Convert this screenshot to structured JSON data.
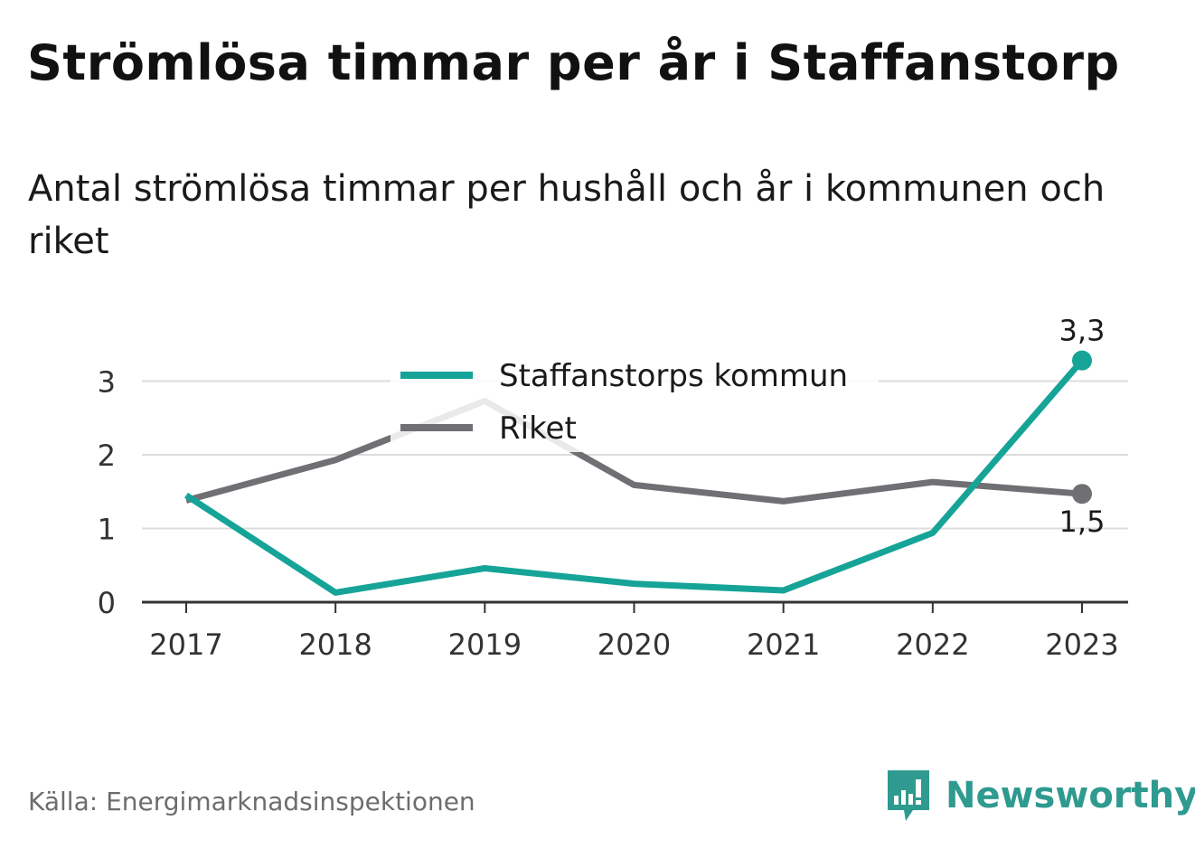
{
  "title": "Strömlösa timmar per år i Staffanstorp",
  "subtitle": "Antal strömlösa timmar per hushåll och år i kommunen och riket",
  "source": "Källa: Energimarknadsinspektionen",
  "brand": "Newsworthy",
  "colors": {
    "staffanstorp": "#15a497",
    "riket": "#706f73",
    "grid": "#dcdcdc",
    "axis": "#333333",
    "brand": "#2f9a8f"
  },
  "chart_data": {
    "type": "line",
    "title": "Strömlösa timmar per år i Staffanstorp",
    "xlabel": "",
    "ylabel": "",
    "x": [
      "2017",
      "2018",
      "2019",
      "2020",
      "2021",
      "2022",
      "2023"
    ],
    "ylim": [
      0,
      3.4
    ],
    "yticks": [
      0,
      1,
      2,
      3
    ],
    "grid": true,
    "legend": "top-center",
    "series": [
      {
        "name": "Staffanstorps kommun",
        "color": "#15a497",
        "values": [
          1.45,
          0.13,
          0.46,
          0.25,
          0.16,
          0.94,
          3.28
        ],
        "end_label": "3,3"
      },
      {
        "name": "Riket",
        "color": "#706f73",
        "values": [
          1.38,
          1.93,
          2.73,
          1.59,
          1.37,
          1.63,
          1.47
        ],
        "end_label": "1,5"
      }
    ]
  }
}
